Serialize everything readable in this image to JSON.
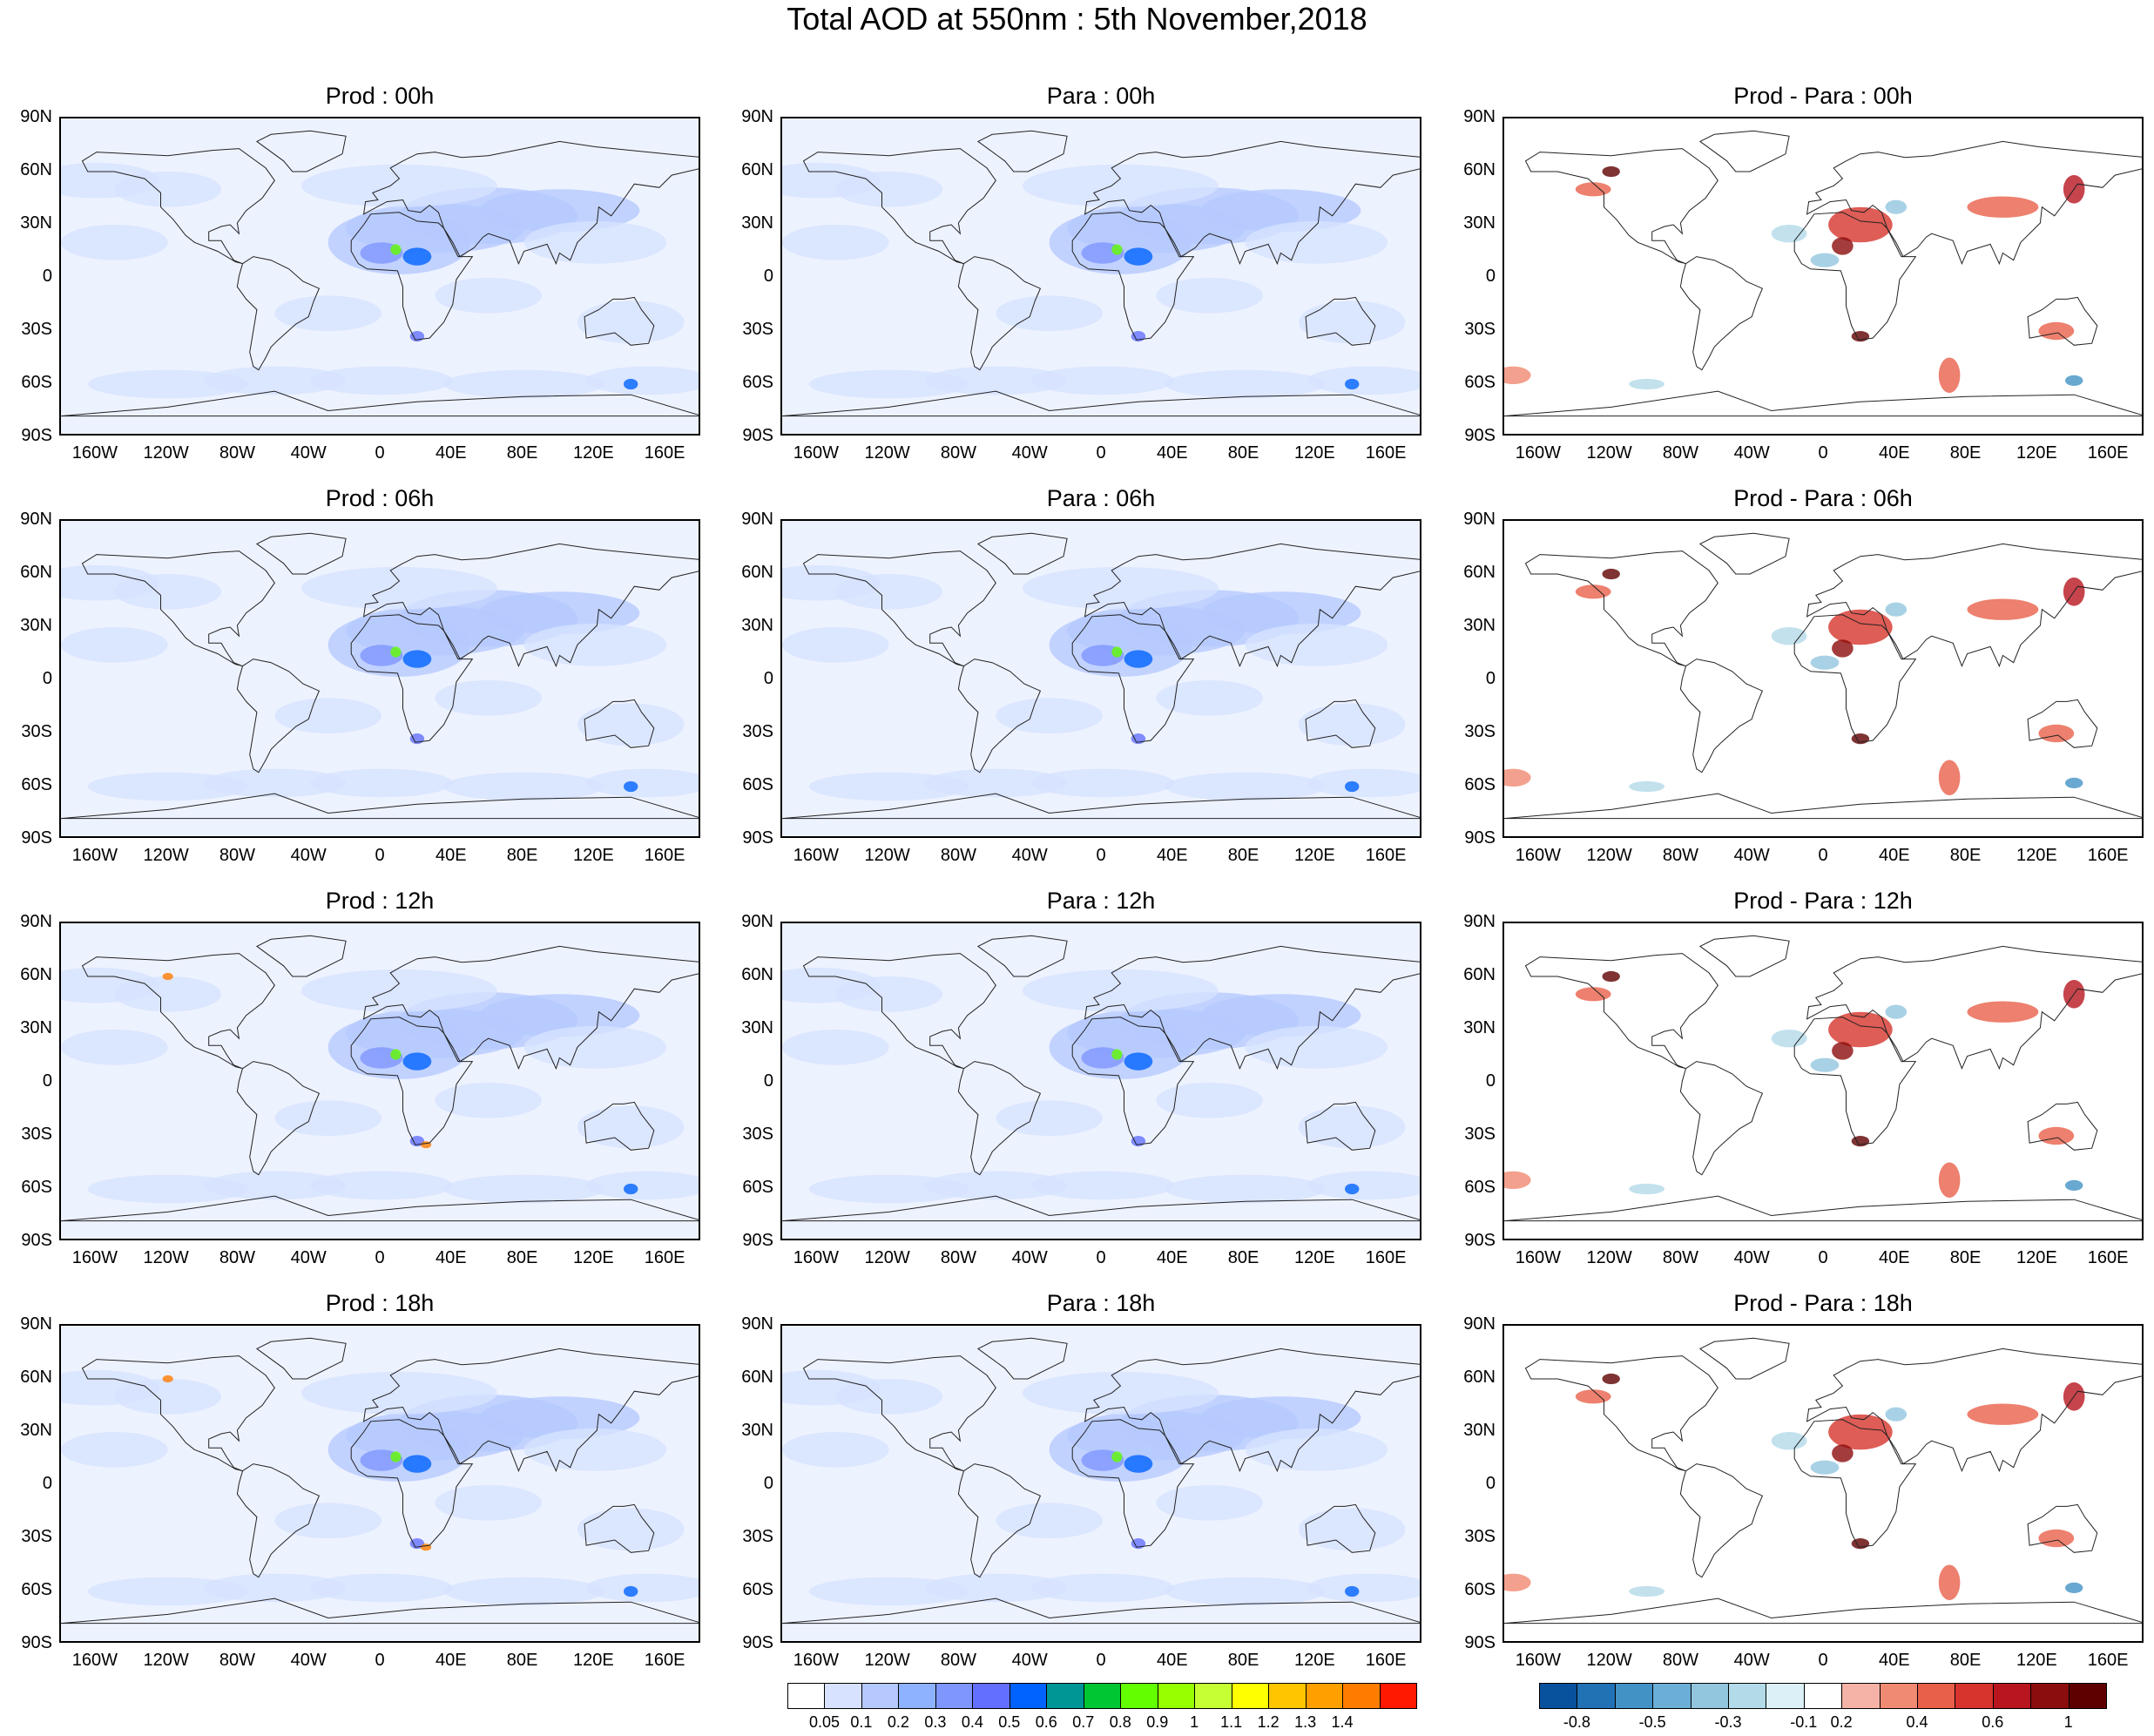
{
  "title": "Total AOD at 550nm : 5th November,2018",
  "chart_data": {
    "type": "heatmap",
    "title": "Total AOD at 550nm : 5th November,2018",
    "lat_ticks": [
      "90N",
      "60N",
      "30N",
      "0",
      "30S",
      "60S",
      "90S"
    ],
    "lon_ticks": [
      "160W",
      "120W",
      "80W",
      "40W",
      "0",
      "40E",
      "80E",
      "120E",
      "160E"
    ],
    "columns": [
      "Prod",
      "Para",
      "Prod - Para"
    ],
    "times": [
      "00h",
      "06h",
      "12h",
      "18h"
    ],
    "panels": [
      {
        "title": "Prod : 00h",
        "kind": "aod"
      },
      {
        "title": "Para : 00h",
        "kind": "aod"
      },
      {
        "title": "Prod - Para : 00h",
        "kind": "diff"
      },
      {
        "title": "Prod : 06h",
        "kind": "aod"
      },
      {
        "title": "Para : 06h",
        "kind": "aod"
      },
      {
        "title": "Prod - Para : 06h",
        "kind": "diff"
      },
      {
        "title": "Prod : 12h",
        "kind": "aod"
      },
      {
        "title": "Para : 12h",
        "kind": "aod"
      },
      {
        "title": "Prod - Para : 12h",
        "kind": "diff"
      },
      {
        "title": "Prod : 18h",
        "kind": "aod"
      },
      {
        "title": "Para : 18h",
        "kind": "aod"
      },
      {
        "title": "Prod - Para : 18h",
        "kind": "diff"
      }
    ],
    "aod_colorbar": {
      "labels": [
        "0.05",
        "0.1",
        "0.2",
        "0.3",
        "0.4",
        "0.5",
        "0.6",
        "0.7",
        "0.8",
        "0.9",
        "1",
        "1.1",
        "1.2",
        "1.3",
        "1.4"
      ],
      "colors": [
        "#ffffff",
        "#d6e2ff",
        "#b5c9ff",
        "#8eb2ff",
        "#7f96ff",
        "#6370ff",
        "#0063ff",
        "#009696",
        "#00c633",
        "#63ff00",
        "#96ff00",
        "#c6ff33",
        "#ffff00",
        "#ffc600",
        "#ffa000",
        "#ff7c00",
        "#ff1900"
      ]
    },
    "diff_colorbar": {
      "labels": [
        "-0.8",
        "-0.5",
        "-0.3",
        "-0.1",
        "0.2",
        "0.4",
        "0.6",
        "1"
      ],
      "colors": [
        "#08519c",
        "#2171b5",
        "#4292c6",
        "#6baed6",
        "#92c5de",
        "#b3dae8",
        "#dbf0f7",
        "#ffffff",
        "#f4b3a6",
        "#f08a72",
        "#e8604a",
        "#d6342c",
        "#b8151f",
        "#8c0d0d",
        "#5f0000"
      ]
    }
  }
}
